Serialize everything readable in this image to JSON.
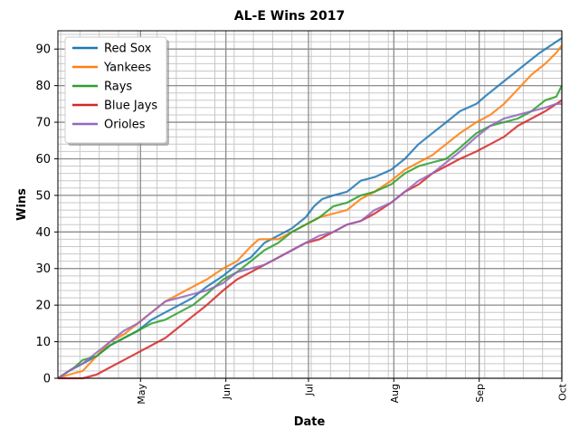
{
  "chart_data": {
    "type": "line",
    "title": "AL-E Wins 2017",
    "xlabel": "Date",
    "ylabel": "Wins",
    "x_tick_labels": [
      {
        "date": "2017-05-01",
        "label": "May"
      },
      {
        "date": "2017-06-01",
        "label": "Jun"
      },
      {
        "date": "2017-07-01",
        "label": "Jul"
      },
      {
        "date": "2017-08-01",
        "label": "Aug"
      },
      {
        "date": "2017-09-01",
        "label": "Sep"
      },
      {
        "date": "2017-10-01",
        "label": "Oct"
      }
    ],
    "xlim": [
      "2017-04-01",
      "2017-10-01"
    ],
    "ylim": [
      0,
      95
    ],
    "y_ticks": [
      0,
      10,
      20,
      30,
      40,
      50,
      60,
      70,
      80,
      90
    ],
    "y_minor_step": 2,
    "x_minor": "weekly",
    "grid": "major-and-minor",
    "legend": "upper-left",
    "series": [
      {
        "name": "Red Sox",
        "color": "#1f77b4",
        "points": [
          [
            "2017-04-01",
            0
          ],
          [
            "2017-04-03",
            1
          ],
          [
            "2017-04-05",
            2
          ],
          [
            "2017-04-10",
            4
          ],
          [
            "2017-04-15",
            6
          ],
          [
            "2017-04-20",
            9
          ],
          [
            "2017-04-25",
            11
          ],
          [
            "2017-04-30",
            13
          ],
          [
            "2017-05-05",
            16
          ],
          [
            "2017-05-10",
            18
          ],
          [
            "2017-05-15",
            20
          ],
          [
            "2017-05-20",
            22
          ],
          [
            "2017-05-25",
            25
          ],
          [
            "2017-05-31",
            28
          ],
          [
            "2017-06-05",
            31
          ],
          [
            "2017-06-10",
            33
          ],
          [
            "2017-06-15",
            37
          ],
          [
            "2017-06-20",
            39
          ],
          [
            "2017-06-25",
            41
          ],
          [
            "2017-06-30",
            44
          ],
          [
            "2017-07-03",
            47
          ],
          [
            "2017-07-06",
            49
          ],
          [
            "2017-07-10",
            50
          ],
          [
            "2017-07-15",
            51
          ],
          [
            "2017-07-20",
            54
          ],
          [
            "2017-07-25",
            55
          ],
          [
            "2017-07-31",
            57
          ],
          [
            "2017-08-05",
            60
          ],
          [
            "2017-08-10",
            64
          ],
          [
            "2017-08-15",
            67
          ],
          [
            "2017-08-20",
            70
          ],
          [
            "2017-08-25",
            73
          ],
          [
            "2017-08-31",
            75
          ],
          [
            "2017-09-03",
            77
          ],
          [
            "2017-09-08",
            80
          ],
          [
            "2017-09-13",
            83
          ],
          [
            "2017-09-18",
            86
          ],
          [
            "2017-09-23",
            89
          ],
          [
            "2017-09-27",
            91
          ],
          [
            "2017-10-01",
            93
          ]
        ]
      },
      {
        "name": "Yankees",
        "color": "#ff7f0e",
        "points": [
          [
            "2017-04-01",
            0
          ],
          [
            "2017-04-05",
            1
          ],
          [
            "2017-04-10",
            2
          ],
          [
            "2017-04-15",
            6
          ],
          [
            "2017-04-20",
            10
          ],
          [
            "2017-04-25",
            12
          ],
          [
            "2017-04-30",
            15
          ],
          [
            "2017-05-05",
            18
          ],
          [
            "2017-05-10",
            21
          ],
          [
            "2017-05-15",
            23
          ],
          [
            "2017-05-20",
            25
          ],
          [
            "2017-05-25",
            27
          ],
          [
            "2017-05-31",
            30
          ],
          [
            "2017-06-05",
            32
          ],
          [
            "2017-06-10",
            36
          ],
          [
            "2017-06-13",
            38
          ],
          [
            "2017-06-20",
            38
          ],
          [
            "2017-06-25",
            40
          ],
          [
            "2017-06-30",
            42
          ],
          [
            "2017-07-05",
            44
          ],
          [
            "2017-07-10",
            45
          ],
          [
            "2017-07-15",
            46
          ],
          [
            "2017-07-20",
            49
          ],
          [
            "2017-07-25",
            51
          ],
          [
            "2017-07-31",
            54
          ],
          [
            "2017-08-05",
            57
          ],
          [
            "2017-08-10",
            59
          ],
          [
            "2017-08-15",
            61
          ],
          [
            "2017-08-20",
            64
          ],
          [
            "2017-08-25",
            67
          ],
          [
            "2017-08-31",
            70
          ],
          [
            "2017-09-05",
            72
          ],
          [
            "2017-09-10",
            75
          ],
          [
            "2017-09-15",
            79
          ],
          [
            "2017-09-20",
            83
          ],
          [
            "2017-09-25",
            86
          ],
          [
            "2017-09-29",
            89
          ],
          [
            "2017-10-01",
            91
          ]
        ]
      },
      {
        "name": "Rays",
        "color": "#2ca02c",
        "points": [
          [
            "2017-04-01",
            0
          ],
          [
            "2017-04-03",
            1
          ],
          [
            "2017-04-07",
            3
          ],
          [
            "2017-04-10",
            5
          ],
          [
            "2017-04-15",
            6
          ],
          [
            "2017-04-20",
            9
          ],
          [
            "2017-04-25",
            11
          ],
          [
            "2017-04-30",
            13
          ],
          [
            "2017-05-05",
            15
          ],
          [
            "2017-05-10",
            16
          ],
          [
            "2017-05-15",
            18
          ],
          [
            "2017-05-20",
            20
          ],
          [
            "2017-05-25",
            23
          ],
          [
            "2017-05-31",
            27
          ],
          [
            "2017-06-05",
            29
          ],
          [
            "2017-06-10",
            32
          ],
          [
            "2017-06-15",
            35
          ],
          [
            "2017-06-20",
            37
          ],
          [
            "2017-06-25",
            40
          ],
          [
            "2017-06-30",
            42
          ],
          [
            "2017-07-05",
            44
          ],
          [
            "2017-07-10",
            47
          ],
          [
            "2017-07-15",
            48
          ],
          [
            "2017-07-20",
            50
          ],
          [
            "2017-07-25",
            51
          ],
          [
            "2017-07-31",
            53
          ],
          [
            "2017-08-05",
            56
          ],
          [
            "2017-08-10",
            58
          ],
          [
            "2017-08-15",
            59
          ],
          [
            "2017-08-20",
            60
          ],
          [
            "2017-08-25",
            63
          ],
          [
            "2017-08-31",
            67
          ],
          [
            "2017-09-05",
            69
          ],
          [
            "2017-09-10",
            70
          ],
          [
            "2017-09-15",
            71
          ],
          [
            "2017-09-20",
            73
          ],
          [
            "2017-09-25",
            76
          ],
          [
            "2017-09-29",
            77
          ],
          [
            "2017-10-01",
            80
          ]
        ]
      },
      {
        "name": "Blue Jays",
        "color": "#d62728",
        "points": [
          [
            "2017-04-01",
            0
          ],
          [
            "2017-04-10",
            0
          ],
          [
            "2017-04-15",
            1
          ],
          [
            "2017-04-20",
            3
          ],
          [
            "2017-04-25",
            5
          ],
          [
            "2017-04-30",
            7
          ],
          [
            "2017-05-05",
            9
          ],
          [
            "2017-05-10",
            11
          ],
          [
            "2017-05-15",
            14
          ],
          [
            "2017-05-20",
            17
          ],
          [
            "2017-05-25",
            20
          ],
          [
            "2017-05-31",
            24
          ],
          [
            "2017-06-05",
            27
          ],
          [
            "2017-06-10",
            29
          ],
          [
            "2017-06-15",
            31
          ],
          [
            "2017-06-20",
            33
          ],
          [
            "2017-06-25",
            35
          ],
          [
            "2017-06-30",
            37
          ],
          [
            "2017-07-05",
            38
          ],
          [
            "2017-07-10",
            40
          ],
          [
            "2017-07-15",
            42
          ],
          [
            "2017-07-20",
            43
          ],
          [
            "2017-07-25",
            45
          ],
          [
            "2017-07-31",
            48
          ],
          [
            "2017-08-05",
            51
          ],
          [
            "2017-08-10",
            53
          ],
          [
            "2017-08-15",
            56
          ],
          [
            "2017-08-20",
            58
          ],
          [
            "2017-08-25",
            60
          ],
          [
            "2017-08-31",
            62
          ],
          [
            "2017-09-05",
            64
          ],
          [
            "2017-09-10",
            66
          ],
          [
            "2017-09-15",
            69
          ],
          [
            "2017-09-20",
            71
          ],
          [
            "2017-09-25",
            73
          ],
          [
            "2017-09-29",
            75
          ],
          [
            "2017-10-01",
            76
          ]
        ]
      },
      {
        "name": "Orioles",
        "color": "#9467bd",
        "points": [
          [
            "2017-04-01",
            0
          ],
          [
            "2017-04-05",
            2
          ],
          [
            "2017-04-10",
            4
          ],
          [
            "2017-04-15",
            7
          ],
          [
            "2017-04-20",
            10
          ],
          [
            "2017-04-25",
            13
          ],
          [
            "2017-04-30",
            15
          ],
          [
            "2017-05-05",
            18
          ],
          [
            "2017-05-10",
            21
          ],
          [
            "2017-05-15",
            22
          ],
          [
            "2017-05-20",
            23
          ],
          [
            "2017-05-25",
            24
          ],
          [
            "2017-05-31",
            26
          ],
          [
            "2017-06-05",
            29
          ],
          [
            "2017-06-10",
            30
          ],
          [
            "2017-06-15",
            31
          ],
          [
            "2017-06-20",
            33
          ],
          [
            "2017-06-25",
            35
          ],
          [
            "2017-06-30",
            37
          ],
          [
            "2017-07-05",
            39
          ],
          [
            "2017-07-10",
            40
          ],
          [
            "2017-07-15",
            42
          ],
          [
            "2017-07-20",
            43
          ],
          [
            "2017-07-25",
            46
          ],
          [
            "2017-07-31",
            48
          ],
          [
            "2017-08-05",
            51
          ],
          [
            "2017-08-10",
            54
          ],
          [
            "2017-08-15",
            56
          ],
          [
            "2017-08-20",
            59
          ],
          [
            "2017-08-25",
            62
          ],
          [
            "2017-08-31",
            66
          ],
          [
            "2017-09-05",
            69
          ],
          [
            "2017-09-10",
            71
          ],
          [
            "2017-09-15",
            72
          ],
          [
            "2017-09-20",
            73
          ],
          [
            "2017-09-25",
            74
          ],
          [
            "2017-09-29",
            75
          ],
          [
            "2017-10-01",
            75
          ]
        ]
      }
    ]
  }
}
